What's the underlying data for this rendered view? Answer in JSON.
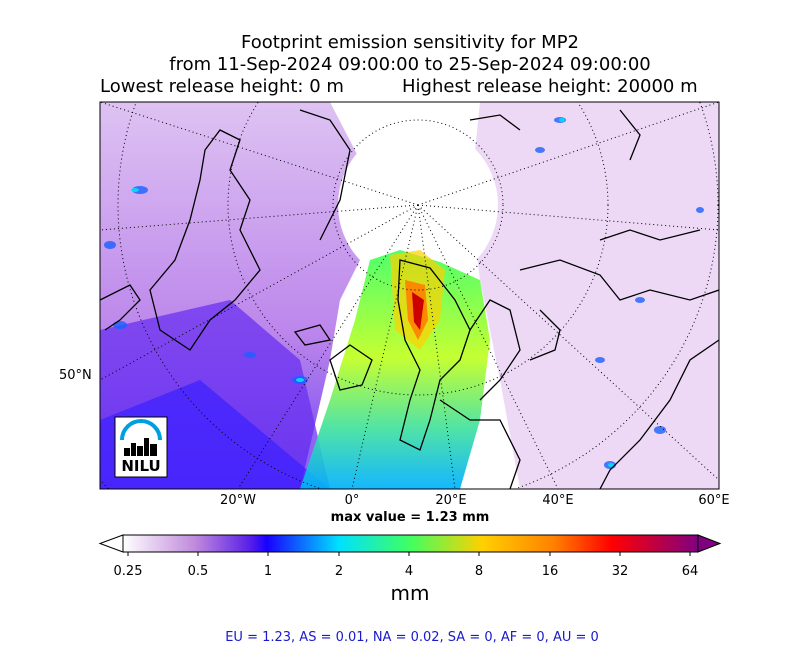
{
  "title": {
    "line1": "Footprint emission sensitivity for MP2",
    "line2": "from 11-Sep-2024 09:00:00 to 25-Sep-2024 09:00:00",
    "lowest": "Lowest release height: 0 m",
    "highest": "Highest release height: 20000 m"
  },
  "map": {
    "projection": "north polar stereographic",
    "lat_labels": [
      "50°N"
    ],
    "lon_labels": [
      "20°W",
      "0°",
      "20°E",
      "40°E",
      "60°E"
    ],
    "logo_text": "NILU",
    "graticule": "dotted",
    "coastlines": "black"
  },
  "max_value_label": "max value = 1.23 mm",
  "colorbar": {
    "ticks": [
      "0.25",
      "0.5",
      "1",
      "2",
      "4",
      "8",
      "16",
      "32",
      "64"
    ],
    "unit": "mm",
    "colors": [
      "#ffffff",
      "#c08adc",
      "#7a2ad8",
      "#1a00ff",
      "#00e0ff",
      "#40ff60",
      "#ffd000",
      "#ff6000",
      "#ff0000",
      "#b00060",
      "#800080"
    ]
  },
  "summary": "EU = 1.23,  AS = 0.01,  NA = 0.02,  SA = 0,  AF = 0,  AU = 0"
}
